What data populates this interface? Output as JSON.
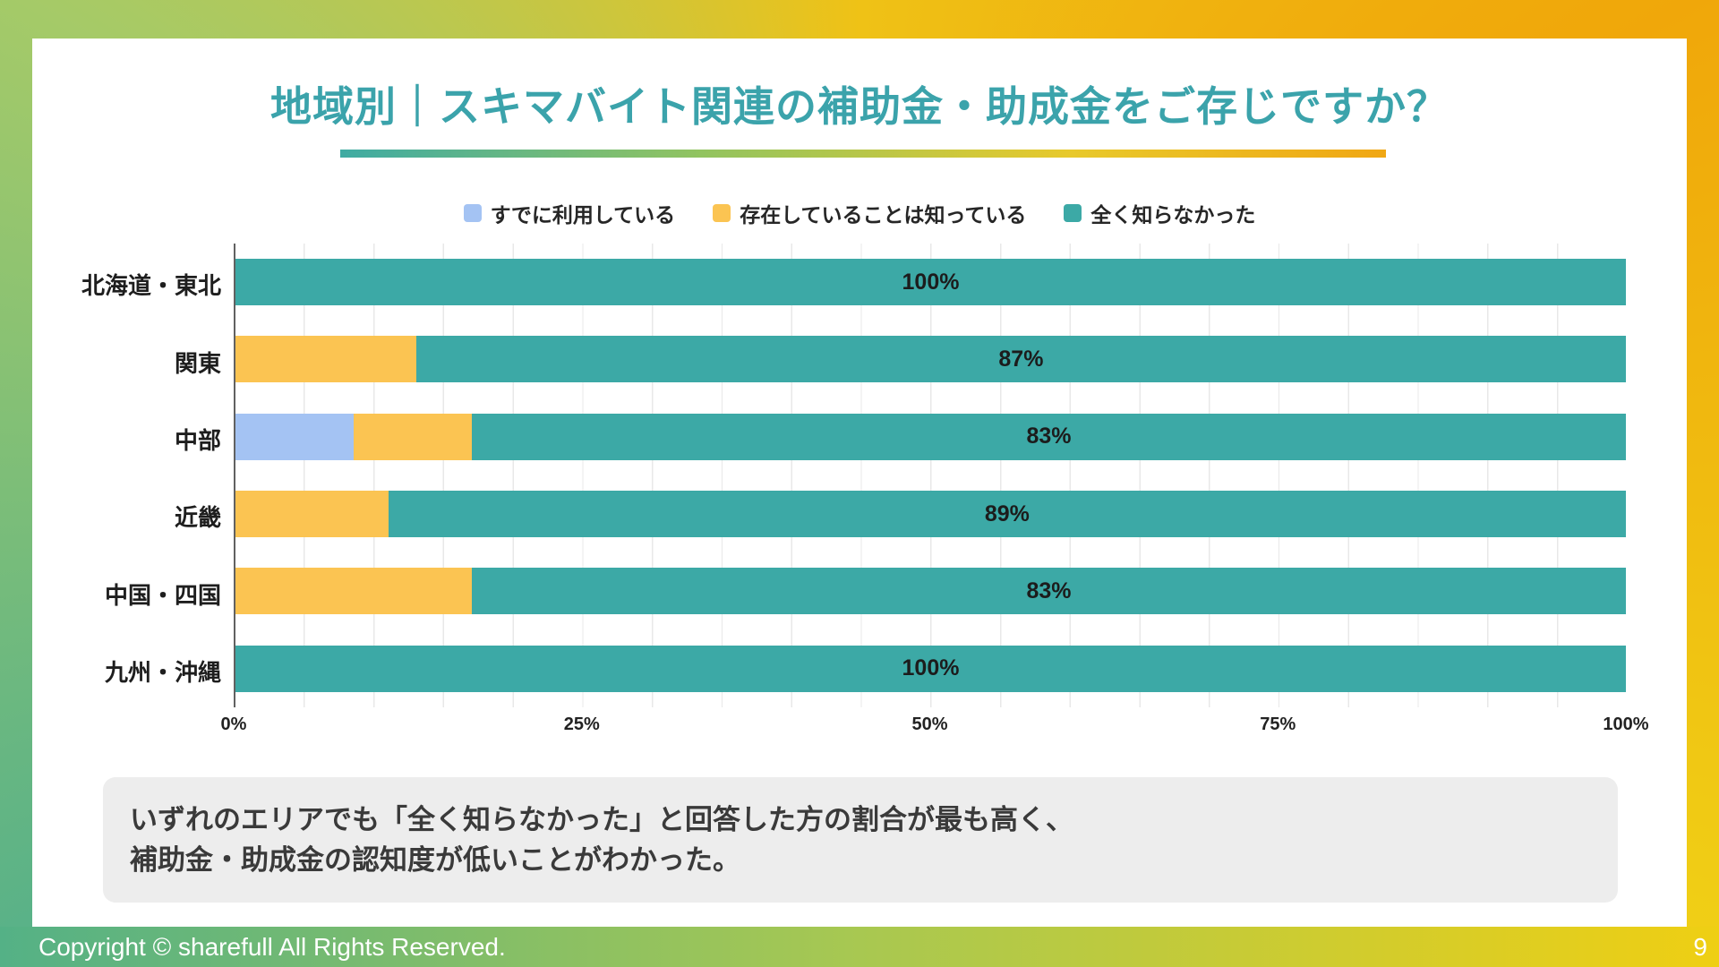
{
  "slide": {
    "title": "地域別｜スキマバイト関連の補助金・助成金をご存じですか？",
    "title_color": "#3BA3AB",
    "footer_copyright": "Copyright © sharefull All Rights Reserved.",
    "page_number": "9"
  },
  "note": {
    "line1": "いずれのエリアでも「全く知らなかった」と回答した方の割合が最も高く、",
    "line2": "補助金・助成金の認知度が低いことがわかった。"
  },
  "chart_data": {
    "type": "bar",
    "orientation": "horizontal",
    "stacked": true,
    "grid": "minor vertical lines every 5%",
    "legend_position": "top-center",
    "x_axis": {
      "range": [
        0,
        100
      ],
      "ticks": [
        "0%",
        "25%",
        "50%",
        "75%",
        "100%"
      ],
      "tick_values": [
        0,
        25,
        50,
        75,
        100
      ]
    },
    "categories": [
      "北海道・東北",
      "関東",
      "中部",
      "近畿",
      "中国・四国",
      "九州・沖縄"
    ],
    "series": [
      {
        "name": "すでに利用している",
        "color": "#A4C3F3",
        "values": [
          0,
          0,
          8.5,
          0,
          0,
          0
        ]
      },
      {
        "name": "存在していることは知っている",
        "color": "#FBC452",
        "values": [
          0,
          13,
          8.5,
          11,
          17,
          0
        ]
      },
      {
        "name": "全く知らなかった",
        "color": "#3CA9A6",
        "values": [
          100,
          87,
          83,
          89,
          83,
          100
        ],
        "data_labels": [
          "100%",
          "87%",
          "83%",
          "89%",
          "83%",
          "100%"
        ]
      }
    ]
  }
}
